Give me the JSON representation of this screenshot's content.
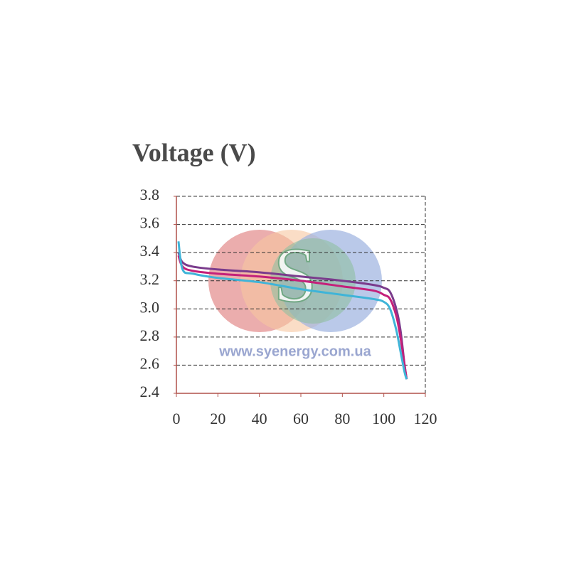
{
  "chart_data": {
    "type": "line",
    "title": "Voltage (V)",
    "watermark": "www.syenergy.com.ua",
    "logo_letter": "S",
    "x": [
      1,
      3,
      8,
      20,
      40,
      60,
      80,
      95,
      100,
      103,
      106,
      108,
      110,
      111
    ],
    "series": [
      {
        "color": "#7a3b8c",
        "values": [
          3.4,
          3.33,
          3.3,
          3.28,
          3.26,
          3.23,
          3.2,
          3.17,
          3.15,
          3.12,
          3.0,
          2.85,
          2.6,
          2.5
        ]
      },
      {
        "color": "#c4207a",
        "values": [
          3.38,
          3.3,
          3.27,
          3.25,
          3.23,
          3.2,
          3.16,
          3.13,
          3.1,
          3.07,
          2.95,
          2.8,
          2.6,
          2.5
        ]
      },
      {
        "color": "#3fb4d8",
        "values": [
          3.48,
          3.28,
          3.25,
          3.22,
          3.19,
          3.14,
          3.1,
          3.07,
          3.05,
          3.0,
          2.85,
          2.7,
          2.55,
          2.5
        ]
      }
    ],
    "xlim": [
      0,
      120
    ],
    "xticks": [
      0,
      20,
      40,
      60,
      80,
      100,
      120
    ],
    "ylim": [
      2.4,
      3.8
    ],
    "yticks": [
      2.4,
      2.6,
      2.8,
      {
        "value": 3,
        "label": "3.0"
      },
      3.2,
      3.4,
      3.6,
      3.8
    ],
    "grid": true
  }
}
